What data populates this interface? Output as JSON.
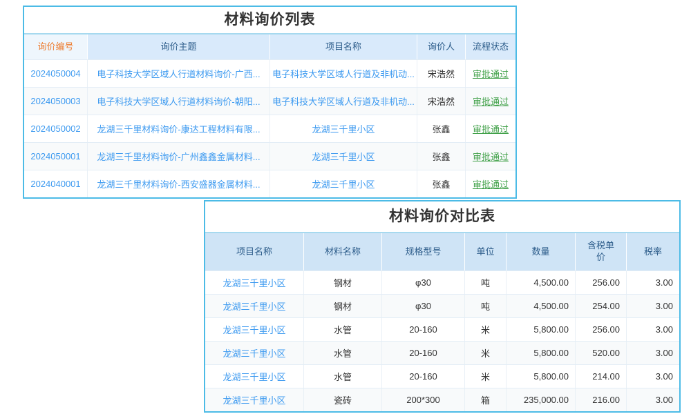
{
  "colors": {
    "border_blue": "#4cbbe6",
    "title_divider": "#a6d9ef",
    "header_bg_1": "#d9eafb",
    "header_bg_2": "#cfe4f6",
    "header_first_bg": "#eef6fd",
    "header_navy": "#2c5c8a",
    "orange": "#ed7d31",
    "link_blue": "#3d9af0",
    "green": "#3fa047",
    "row_line": "#e3edf6",
    "cell_line": "#e9f0f6",
    "alt_row": "#f8fafb"
  },
  "inquiry_list": {
    "title": "材料询价列表",
    "columns": [
      "询价编号",
      "询价主题",
      "项目名称",
      "询价人",
      "流程状态"
    ],
    "rows": [
      {
        "inquiry_no": "2024050004",
        "subject": "电子科技大学区域人行道材料询价-广西...",
        "project_name": "电子科技大学区域人行道及非机动...",
        "inquirer": "宋浩然",
        "status": "审批通过"
      },
      {
        "inquiry_no": "2024050003",
        "subject": "电子科技大学区域人行道材料询价-朝阳...",
        "project_name": "电子科技大学区域人行道及非机动...",
        "inquirer": "宋浩然",
        "status": "审批通过"
      },
      {
        "inquiry_no": "2024050002",
        "subject": "龙湖三千里材料询价-康达工程材料有限...",
        "project_name": "龙湖三千里小区",
        "inquirer": "张鑫",
        "status": "审批通过"
      },
      {
        "inquiry_no": "2024050001",
        "subject": "龙湖三千里材料询价-广州鑫鑫金属材料...",
        "project_name": "龙湖三千里小区",
        "inquirer": "张鑫",
        "status": "审批通过"
      },
      {
        "inquiry_no": "2024040001",
        "subject": "龙湖三千里材料询价-西安盛器金属材料...",
        "project_name": "龙湖三千里小区",
        "inquirer": "张鑫",
        "status": "审批通过"
      }
    ]
  },
  "comparison_table": {
    "title": "材料询价对比表",
    "columns": [
      "项目名称",
      "材料名称",
      "规格型号",
      "单位",
      "数量",
      "含税单价",
      "税率"
    ],
    "rows": [
      {
        "project_name": "龙湖三千里小区",
        "material": "钢材",
        "spec": "φ30",
        "unit": "吨",
        "quantity": "4,500.00",
        "unit_price_with_tax": "256.00",
        "tax_rate": "3.00"
      },
      {
        "project_name": "龙湖三千里小区",
        "material": "钢材",
        "spec": "φ30",
        "unit": "吨",
        "quantity": "4,500.00",
        "unit_price_with_tax": "254.00",
        "tax_rate": "3.00"
      },
      {
        "project_name": "龙湖三千里小区",
        "material": "水管",
        "spec": "20-160",
        "unit": "米",
        "quantity": "5,800.00",
        "unit_price_with_tax": "256.00",
        "tax_rate": "3.00"
      },
      {
        "project_name": "龙湖三千里小区",
        "material": "水管",
        "spec": "20-160",
        "unit": "米",
        "quantity": "5,800.00",
        "unit_price_with_tax": "520.00",
        "tax_rate": "3.00"
      },
      {
        "project_name": "龙湖三千里小区",
        "material": "水管",
        "spec": "20-160",
        "unit": "米",
        "quantity": "5,800.00",
        "unit_price_with_tax": "214.00",
        "tax_rate": "3.00"
      },
      {
        "project_name": "龙湖三千里小区",
        "material": "瓷砖",
        "spec": "200*300",
        "unit": "箱",
        "quantity": "235,000.00",
        "unit_price_with_tax": "216.00",
        "tax_rate": "3.00"
      }
    ]
  }
}
